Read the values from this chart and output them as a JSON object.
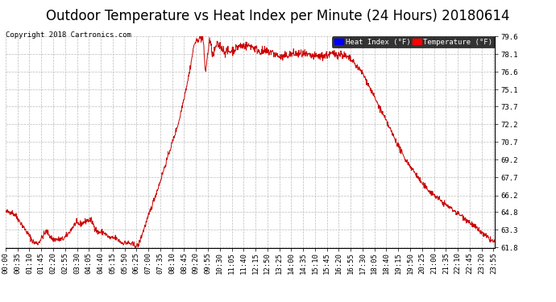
{
  "title": "Outdoor Temperature vs Heat Index per Minute (24 Hours) 20180614",
  "copyright": "Copyright 2018 Cartronics.com",
  "legend_heat_index": "Heat Index (°F)",
  "legend_temperature": "Temperature (°F)",
  "background_color": "#ffffff",
  "plot_bg_color": "#ffffff",
  "line_color": "#cc0000",
  "grid_color": "#bbbbbb",
  "ylim": [
    61.8,
    79.6
  ],
  "yticks": [
    61.8,
    63.3,
    64.8,
    66.2,
    67.7,
    69.2,
    70.7,
    72.2,
    73.7,
    75.1,
    76.6,
    78.1,
    79.6
  ],
  "title_fontsize": 12,
  "tick_fontsize": 6.5,
  "num_minutes": 1440
}
